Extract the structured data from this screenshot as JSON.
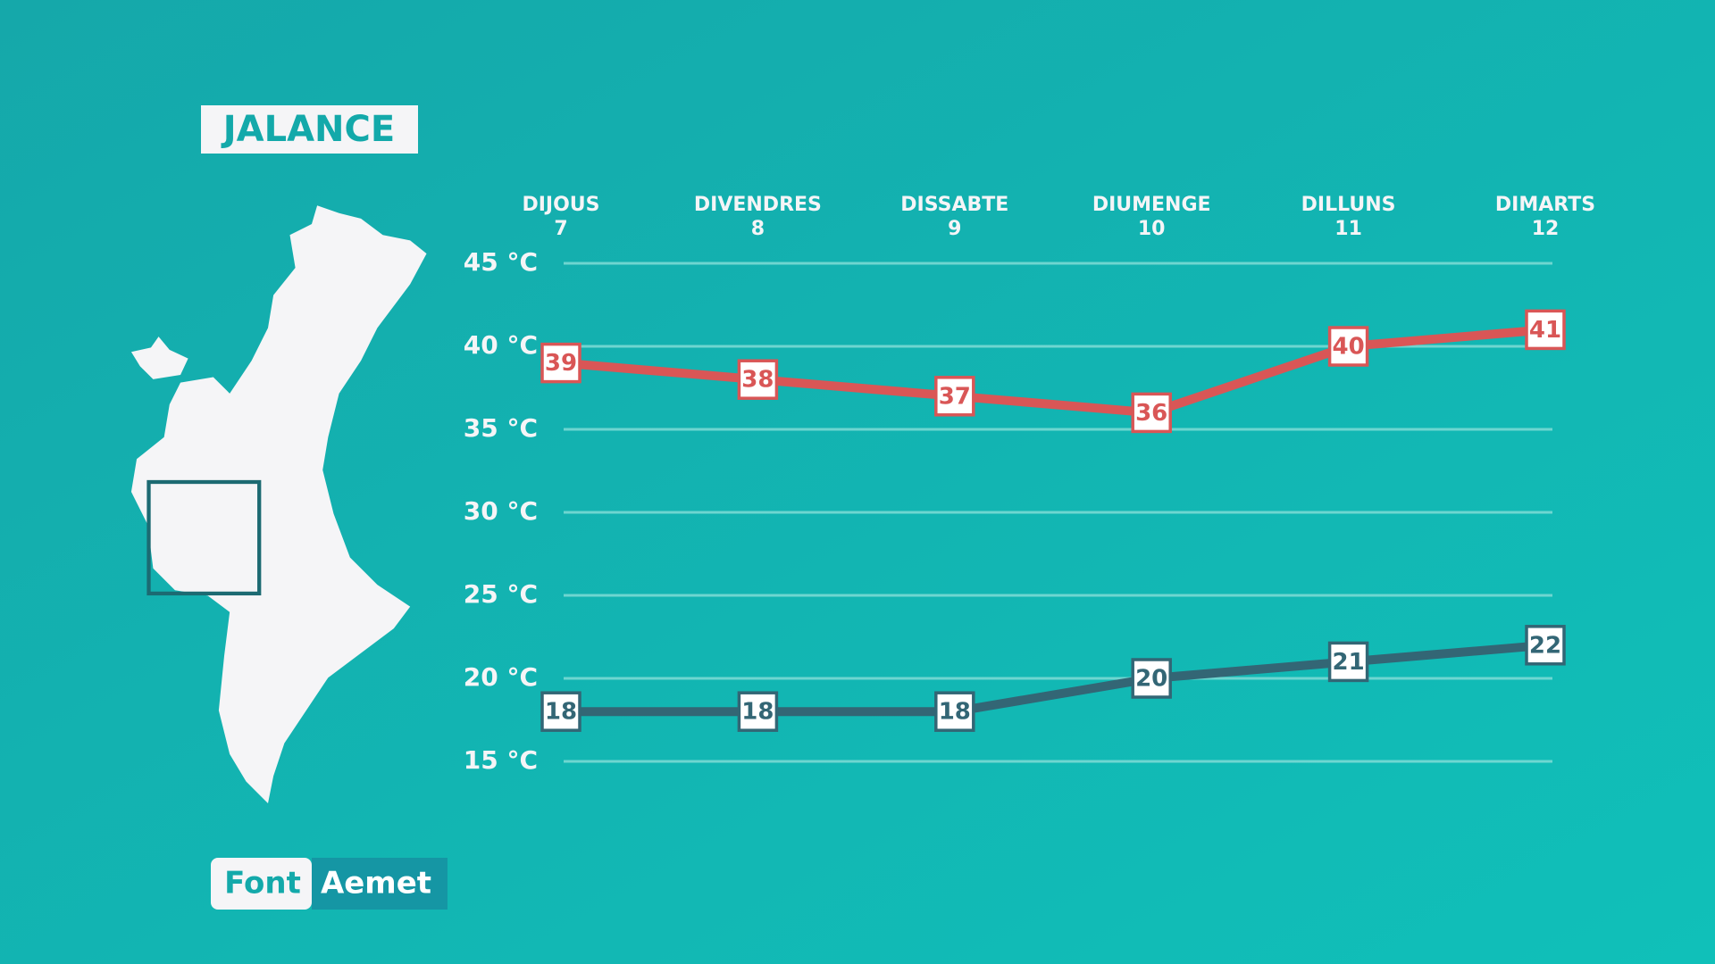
{
  "chart_data": {
    "type": "line",
    "title": "JALANCE",
    "categories": [
      [
        "DIJOUS",
        "7"
      ],
      [
        "DIVENDRES",
        "8"
      ],
      [
        "DISSABTE",
        "9"
      ],
      [
        "DIUMENGE",
        "10"
      ],
      [
        "DILLUNS",
        "11"
      ],
      [
        "DIMARTS",
        "12"
      ]
    ],
    "series": [
      {
        "color": "#d95656",
        "values": [
          39,
          38,
          37,
          36,
          40,
          41
        ]
      },
      {
        "color": "#336675",
        "values": [
          18,
          18,
          18,
          20,
          21,
          22
        ]
      }
    ],
    "ylim": [
      15,
      45
    ],
    "yticks": [
      {
        "value": 15,
        "label": "15 °C"
      },
      {
        "value": 20,
        "label": "20 °C"
      },
      {
        "value": 25,
        "label": "25 °C"
      },
      {
        "value": 30,
        "label": "30 °C"
      },
      {
        "value": 35,
        "label": "35 °C"
      },
      {
        "value": 40,
        "label": "40 °C"
      },
      {
        "value": 45,
        "label": "45 °C"
      }
    ],
    "grid": true,
    "source_label": "Font",
    "source": "Aemet"
  }
}
